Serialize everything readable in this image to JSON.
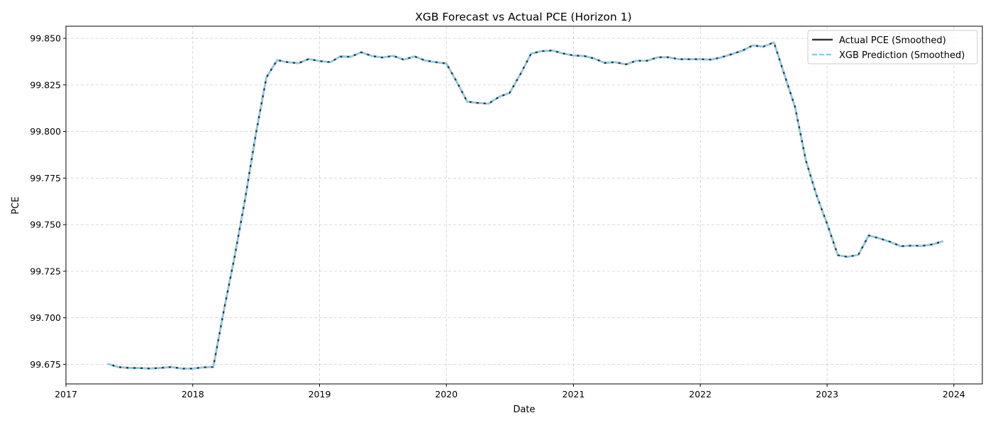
{
  "chart_data": {
    "type": "line",
    "title": "XGB Forecast vs Actual PCE (Horizon 1)",
    "xlabel": "Date",
    "ylabel": "PCE",
    "xlim": [
      "2017-01-01",
      "2024-03-23"
    ],
    "ylim": [
      99.6645,
      99.8565
    ],
    "x_ticks": [
      "2017",
      "2018",
      "2019",
      "2020",
      "2021",
      "2022",
      "2023",
      "2024"
    ],
    "y_ticks": [
      "99.675",
      "99.700",
      "99.725",
      "99.750",
      "99.775",
      "99.800",
      "99.825",
      "99.850"
    ],
    "grid": true,
    "legend_position": "top-right",
    "x": [
      "2017-05-01",
      "2017-06-01",
      "2017-07-01",
      "2017-08-01",
      "2017-09-01",
      "2017-10-01",
      "2017-11-01",
      "2017-12-01",
      "2018-01-01",
      "2018-02-01",
      "2018-03-01",
      "2018-04-01",
      "2018-05-01",
      "2018-06-01",
      "2018-07-01",
      "2018-08-01",
      "2018-09-01",
      "2018-10-01",
      "2018-11-01",
      "2018-12-01",
      "2019-01-01",
      "2019-02-01",
      "2019-03-01",
      "2019-04-01",
      "2019-05-01",
      "2019-06-01",
      "2019-07-01",
      "2019-08-01",
      "2019-09-01",
      "2019-10-01",
      "2019-11-01",
      "2019-12-01",
      "2020-01-01",
      "2020-02-01",
      "2020-03-01",
      "2020-04-01",
      "2020-05-01",
      "2020-06-01",
      "2020-07-01",
      "2020-08-01",
      "2020-09-01",
      "2020-10-01",
      "2020-11-01",
      "2020-12-01",
      "2021-01-01",
      "2021-02-01",
      "2021-03-01",
      "2021-04-01",
      "2021-05-01",
      "2021-06-01",
      "2021-07-01",
      "2021-08-01",
      "2021-09-01",
      "2021-10-01",
      "2021-11-01",
      "2021-12-01",
      "2022-01-01",
      "2022-02-01",
      "2022-03-01",
      "2022-04-01",
      "2022-05-01",
      "2022-06-01",
      "2022-07-01",
      "2022-08-01",
      "2022-09-01",
      "2022-10-01",
      "2022-11-01",
      "2022-12-01",
      "2023-01-01",
      "2023-02-01",
      "2023-03-01",
      "2023-04-01",
      "2023-05-01",
      "2023-06-01",
      "2023-07-01",
      "2023-08-01",
      "2023-09-01",
      "2023-10-01",
      "2023-11-01",
      "2023-12-01"
    ],
    "series": [
      {
        "name": "Actual PCE (Smoothed)",
        "color": "#333333",
        "style": "solid",
        "values": [
          99.6753,
          99.6735,
          99.6731,
          99.673,
          99.6728,
          99.6731,
          99.6736,
          99.6727,
          99.6728,
          99.6734,
          99.6736,
          99.7043,
          99.7323,
          99.764,
          99.798,
          99.829,
          99.8383,
          99.8372,
          99.8366,
          99.8389,
          99.8378,
          99.8372,
          99.8402,
          99.8401,
          99.8425,
          99.8405,
          99.8397,
          99.8406,
          99.8385,
          99.8403,
          99.8381,
          99.8372,
          99.8365,
          99.8263,
          99.816,
          99.8153,
          99.8149,
          99.8186,
          99.8207,
          99.8307,
          99.8418,
          99.8431,
          99.8435,
          99.8419,
          99.8408,
          99.8405,
          99.8392,
          99.8368,
          99.8372,
          99.836,
          99.838,
          99.838,
          99.8398,
          99.8398,
          99.8388,
          99.8388,
          99.8388,
          99.8386,
          99.8397,
          99.8415,
          99.8433,
          99.8462,
          99.8455,
          99.8478,
          99.8301,
          99.813,
          99.7844,
          99.7661,
          99.7505,
          99.7336,
          99.7327,
          99.7338,
          99.7442,
          99.7426,
          99.7408,
          99.7384,
          99.7387,
          99.7386,
          99.7394,
          99.7411
        ]
      },
      {
        "name": "XGB Prediction (Smoothed)",
        "color": "#87CEEB",
        "style": "dashed",
        "values": [
          99.6753,
          99.6735,
          99.6731,
          99.673,
          99.6728,
          99.6731,
          99.6736,
          99.6727,
          99.6728,
          99.6734,
          99.6736,
          99.7043,
          99.7323,
          99.764,
          99.798,
          99.829,
          99.8383,
          99.8372,
          99.8366,
          99.8389,
          99.8378,
          99.8372,
          99.8402,
          99.8401,
          99.8425,
          99.8405,
          99.8397,
          99.8406,
          99.8385,
          99.8403,
          99.8381,
          99.8372,
          99.8365,
          99.8263,
          99.816,
          99.8153,
          99.8149,
          99.8186,
          99.8207,
          99.8307,
          99.8418,
          99.8431,
          99.8435,
          99.8419,
          99.8408,
          99.8405,
          99.8392,
          99.8368,
          99.8372,
          99.836,
          99.838,
          99.838,
          99.8398,
          99.8398,
          99.8388,
          99.8388,
          99.8388,
          99.8386,
          99.8397,
          99.8415,
          99.8433,
          99.8462,
          99.8455,
          99.8478,
          99.8301,
          99.813,
          99.7844,
          99.7661,
          99.7505,
          99.7336,
          99.7327,
          99.7338,
          99.7442,
          99.7426,
          99.7408,
          99.7384,
          99.7387,
          99.7386,
          99.7394,
          99.7411
        ]
      }
    ]
  },
  "colors": {
    "grid": "#cccccc",
    "axis": "#000000",
    "legend_border": "#cccccc"
  }
}
